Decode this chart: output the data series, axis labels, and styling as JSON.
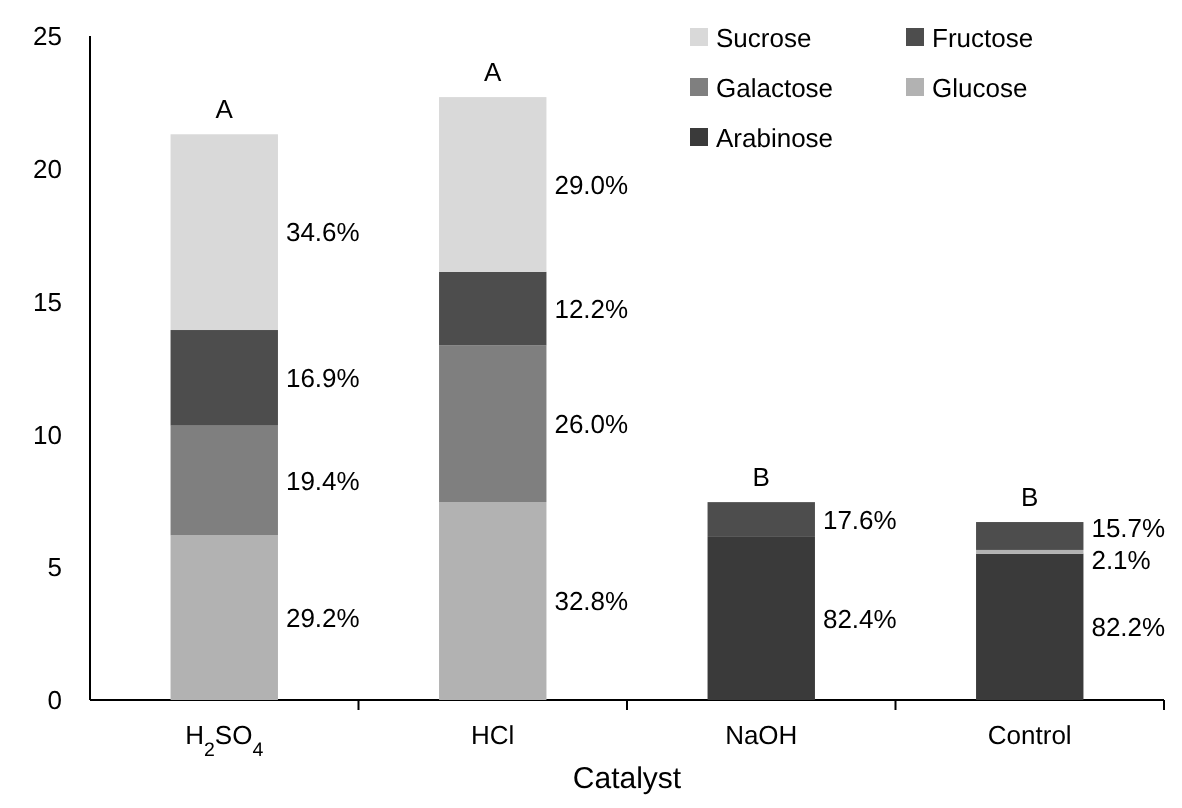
{
  "chart_data": {
    "type": "bar",
    "stacked": true,
    "xlabel": "Catalyst",
    "categories": [
      "H$_{2}$SO$_{4}$",
      "HCl",
      "NaOH",
      "Control"
    ],
    "series": [
      {
        "name": "Arabinose",
        "color": "#3a3a3a",
        "values": [
          null,
          null,
          6.14,
          5.51
        ]
      },
      {
        "name": "Glucose",
        "color": "#b2b2b2",
        "values": [
          6.2,
          7.45,
          null,
          0.14
        ]
      },
      {
        "name": "Galactose",
        "color": "#7f7f7f",
        "values": [
          4.13,
          5.9,
          null,
          null
        ]
      },
      {
        "name": "Fructose",
        "color": "#4d4d4d",
        "values": [
          3.6,
          2.77,
          1.31,
          1.05
        ]
      },
      {
        "name": "Sucrose",
        "color": "#d9d9d9",
        "values": [
          7.37,
          6.58,
          null,
          null
        ]
      }
    ],
    "ylim": [
      0,
      25
    ],
    "yticks": [
      0,
      5,
      10,
      15,
      20,
      25
    ],
    "legend": "top right",
    "annotations": [
      {
        "text": "A",
        "x": "H$_{2}$SO$_{4}$",
        "y": 21.3
      },
      {
        "text": "A",
        "x": "HCl",
        "y": 22.7
      },
      {
        "text": "B",
        "x": "NaOH",
        "y": 7.45
      },
      {
        "text": "B",
        "x": "Control",
        "y": 6.7
      },
      "29.2%",
      "19.4%",
      "16.9%",
      "34.6%",
      "32.8%",
      "26.0%",
      "12.2%",
      "29.0%",
      "82.4%",
      "17.6%",
      "82.2%",
      "2.1%",
      "15.7%"
    ]
  }
}
